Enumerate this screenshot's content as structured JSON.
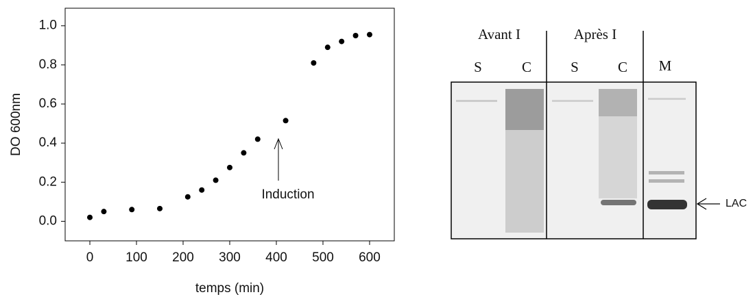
{
  "chart_data": {
    "type": "scatter",
    "x_label": "temps (min)",
    "y_label": "DO 600nm",
    "x": [
      0,
      30,
      90,
      150,
      210,
      240,
      270,
      300,
      330,
      360,
      420,
      480,
      510,
      540,
      570,
      600
    ],
    "values": [
      0.02,
      0.05,
      0.06,
      0.065,
      0.125,
      0.16,
      0.21,
      0.275,
      0.35,
      0.42,
      0.515,
      0.81,
      0.89,
      0.92,
      0.95,
      0.955
    ],
    "color": "#000000",
    "xlim": [
      -53,
      653
    ],
    "ylim": [
      -0.1,
      1.09
    ],
    "xticks": [
      0,
      100,
      200,
      300,
      400,
      500,
      600
    ],
    "yticks": [
      {
        "value": 0,
        "label": "0.0"
      },
      0.2,
      0.4,
      0.6,
      0.8,
      {
        "value": 1,
        "label": "1.0"
      }
    ],
    "annotation": "Induction"
  },
  "gel": {
    "groups": [
      "Avant I",
      "Après I"
    ],
    "lanes": [
      "S",
      "C",
      "S",
      "C",
      "M"
    ],
    "band_label": "LAC"
  }
}
